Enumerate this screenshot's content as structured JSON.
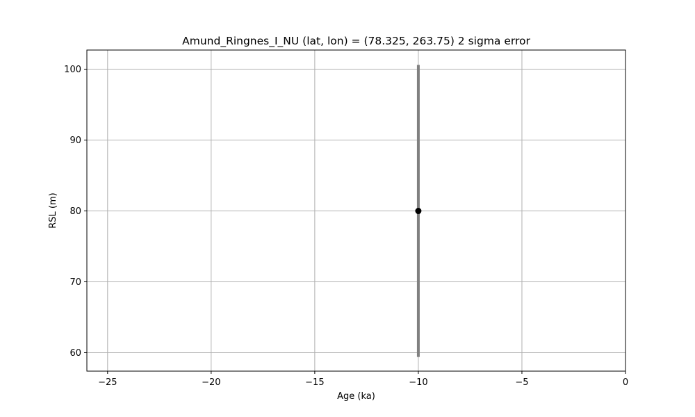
{
  "chart_data": {
    "type": "scatter",
    "title": "Amund_Ringnes_I_NU (lat, lon) = (78.325, 263.75)  2 sigma error",
    "xlabel": "Age (ka)",
    "ylabel": "RSL (m)",
    "xlim": [
      -26.0,
      0.0
    ],
    "ylim": [
      57.4,
      102.7
    ],
    "xticks": [
      -25,
      -20,
      -15,
      -10,
      -5,
      0
    ],
    "xtick_labels": [
      "−25",
      "−20",
      "−15",
      "−10",
      "−5",
      "0"
    ],
    "yticks": [
      60,
      70,
      80,
      90,
      100
    ],
    "ytick_labels": [
      "60",
      "70",
      "80",
      "90",
      "100"
    ],
    "grid": true,
    "points": [
      {
        "x": -10.0,
        "y": 80.0,
        "yerr": 20.6
      }
    ],
    "colors": {
      "point": "#000000",
      "errorbar": "#808080",
      "grid": "#b0b0b0",
      "axes": "#000000"
    }
  }
}
